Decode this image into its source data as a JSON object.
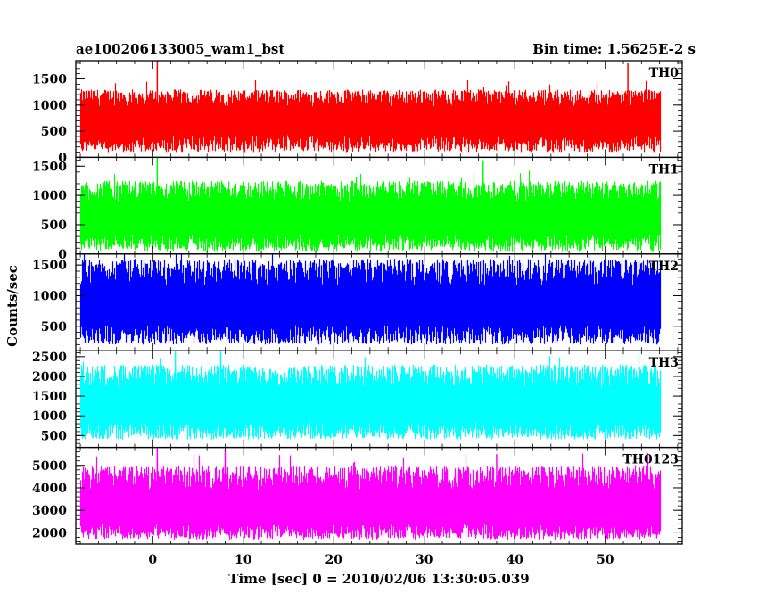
{
  "header": {
    "left": "ae100206133005_wam1_bst",
    "right": "Bin time: 1.5625E-2 s"
  },
  "chart_data": {
    "type": "line",
    "xlabel": "Time [sec] 0 = 2010/02/06 13:30:05.039",
    "ylabel": "Counts/sec",
    "xlim": [
      -8.5,
      58.5
    ],
    "x_ticks": [
      0,
      10,
      20,
      30,
      40,
      50
    ],
    "x_tick_labels": [
      "0",
      "10",
      "20",
      "30",
      "40",
      "50"
    ],
    "data_range": [
      -8,
      56
    ],
    "bin_time": 0.015625,
    "panels": [
      {
        "name": "TH0",
        "color": "#ff0000",
        "ylim": [
          0,
          1850
        ],
        "y_ticks": [
          0,
          500,
          1000,
          1500
        ],
        "y_tick_labels": [
          "0",
          "500",
          "1000",
          "1500"
        ],
        "typical_range": [
          100,
          1300
        ],
        "mean": 700,
        "peaks": [
          {
            "x": 0.5,
            "y": 1850
          },
          {
            "x": 52.5,
            "y": 1800
          }
        ]
      },
      {
        "name": "TH1",
        "color": "#00ff00",
        "ylim": [
          0,
          1650
        ],
        "y_ticks": [
          0,
          500,
          1000,
          1500
        ],
        "y_tick_labels": [
          "0",
          "500",
          "1000",
          "1500"
        ],
        "typical_range": [
          50,
          1250
        ],
        "mean": 600,
        "peaks": [
          {
            "x": 0.5,
            "y": 1650
          },
          {
            "x": 36.5,
            "y": 1600
          }
        ]
      },
      {
        "name": "TH2",
        "color": "#0000ff",
        "ylim": [
          100,
          1680
        ],
        "y_ticks": [
          500,
          1000,
          1500
        ],
        "y_tick_labels": [
          "500",
          "1000",
          "1500"
        ],
        "typical_range": [
          200,
          1600
        ],
        "mean": 800,
        "peaks": []
      },
      {
        "name": "TH3",
        "color": "#00ffff",
        "ylim": [
          200,
          2650
        ],
        "y_ticks": [
          500,
          1000,
          1500,
          2000,
          2500
        ],
        "y_tick_labels": [
          "500",
          "1000",
          "1500",
          "2000",
          "2500"
        ],
        "typical_range": [
          400,
          2300
        ],
        "mean": 1200,
        "peaks": [
          {
            "x": 2.5,
            "y": 2650
          },
          {
            "x": 7.5,
            "y": 2650
          }
        ]
      },
      {
        "name": "TH0123",
        "color": "#ff00ff",
        "ylim": [
          1500,
          5800
        ],
        "y_ticks": [
          2000,
          3000,
          4000,
          5000
        ],
        "y_tick_labels": [
          "2000",
          "3000",
          "4000",
          "5000"
        ],
        "typical_range": [
          1700,
          5000
        ],
        "mean": 3000,
        "peaks": [
          {
            "x": 0.5,
            "y": 5800
          },
          {
            "x": 8,
            "y": 5700
          },
          {
            "x": 38,
            "y": 5500
          }
        ]
      }
    ]
  }
}
